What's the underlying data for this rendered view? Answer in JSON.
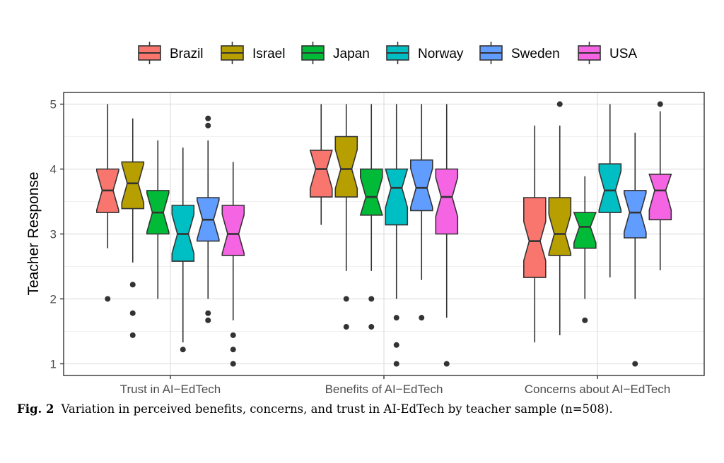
{
  "chart_data": {
    "type": "boxplot",
    "ylabel": "Teacher Response",
    "ylim": [
      0.82,
      5.18
    ],
    "yticks": [
      "1",
      "2",
      "3",
      "4",
      "5"
    ],
    "grid": true,
    "legend_position": "top",
    "categories": [
      "Trust in AI−EdTech",
      "Benefits of AI−EdTech",
      "Concerns about AI−EdTech"
    ],
    "series": [
      {
        "name": "Brazil",
        "color": "#F8766D",
        "boxes": [
          {
            "whisker_low": 2.78,
            "q1": 3.33,
            "median": 3.67,
            "q3": 4.0,
            "whisker_high": 5.0,
            "outliers": [
              2.0
            ]
          },
          {
            "whisker_low": 3.14,
            "q1": 3.57,
            "median": 4.0,
            "q3": 4.29,
            "whisker_high": 5.0,
            "outliers": []
          },
          {
            "whisker_low": 1.33,
            "q1": 2.33,
            "median": 2.89,
            "q3": 3.56,
            "whisker_high": 4.67,
            "outliers": []
          }
        ]
      },
      {
        "name": "Israel",
        "color": "#B79F00",
        "boxes": [
          {
            "whisker_low": 2.56,
            "q1": 3.39,
            "median": 3.78,
            "q3": 4.11,
            "whisker_high": 4.78,
            "outliers": [
              2.22,
              1.78,
              1.44
            ]
          },
          {
            "whisker_low": 2.43,
            "q1": 3.57,
            "median": 4.0,
            "q3": 4.5,
            "whisker_high": 5.0,
            "outliers": [
              2.0,
              1.57
            ]
          },
          {
            "whisker_low": 1.44,
            "q1": 2.67,
            "median": 3.0,
            "q3": 3.56,
            "whisker_high": 4.67,
            "outliers": [
              5.0
            ]
          }
        ]
      },
      {
        "name": "Japan",
        "color": "#00BA38",
        "boxes": [
          {
            "whisker_low": 2.0,
            "q1": 3.0,
            "median": 3.33,
            "q3": 3.67,
            "whisker_high": 4.44,
            "outliers": []
          },
          {
            "whisker_low": 2.43,
            "q1": 3.29,
            "median": 3.57,
            "q3": 4.0,
            "whisker_high": 5.0,
            "outliers": [
              2.0,
              1.57
            ]
          },
          {
            "whisker_low": 2.0,
            "q1": 2.78,
            "median": 3.11,
            "q3": 3.33,
            "whisker_high": 3.89,
            "outliers": [
              1.67
            ]
          }
        ]
      },
      {
        "name": "Norway",
        "color": "#00BFC4",
        "boxes": [
          {
            "whisker_low": 1.33,
            "q1": 2.58,
            "median": 3.0,
            "q3": 3.44,
            "whisker_high": 4.33,
            "outliers": [
              1.22
            ]
          },
          {
            "whisker_low": 2.0,
            "q1": 3.14,
            "median": 3.71,
            "q3": 4.0,
            "whisker_high": 5.0,
            "outliers": [
              1.71,
              1.29,
              1.0
            ]
          },
          {
            "whisker_low": 2.33,
            "q1": 3.33,
            "median": 3.67,
            "q3": 4.08,
            "whisker_high": 5.0,
            "outliers": []
          }
        ]
      },
      {
        "name": "Sweden",
        "color": "#619CFF",
        "boxes": [
          {
            "whisker_low": 2.0,
            "q1": 2.89,
            "median": 3.22,
            "q3": 3.56,
            "whisker_high": 4.44,
            "outliers": [
              4.78,
              4.67,
              1.78,
              1.67
            ]
          },
          {
            "whisker_low": 2.29,
            "q1": 3.36,
            "median": 3.71,
            "q3": 4.14,
            "whisker_high": 5.0,
            "outliers": [
              1.71
            ]
          },
          {
            "whisker_low": 2.0,
            "q1": 2.94,
            "median": 3.33,
            "q3": 3.67,
            "whisker_high": 4.56,
            "outliers": [
              1.0
            ]
          }
        ]
      },
      {
        "name": "USA",
        "color": "#F564E3",
        "boxes": [
          {
            "whisker_low": 1.67,
            "q1": 2.67,
            "median": 3.0,
            "q3": 3.44,
            "whisker_high": 4.11,
            "outliers": [
              1.44,
              1.22,
              1.0
            ]
          },
          {
            "whisker_low": 1.71,
            "q1": 3.0,
            "median": 3.57,
            "q3": 4.0,
            "whisker_high": 5.0,
            "outliers": [
              1.0
            ]
          },
          {
            "whisker_low": 2.44,
            "q1": 3.22,
            "median": 3.67,
            "q3": 3.92,
            "whisker_high": 4.89,
            "outliers": [
              5.0
            ]
          }
        ]
      }
    ]
  },
  "caption": {
    "label": "Fig. 2",
    "text": "Variation in perceived benefits, concerns, and trust in AI-EdTech by teacher sample (n=508)."
  }
}
